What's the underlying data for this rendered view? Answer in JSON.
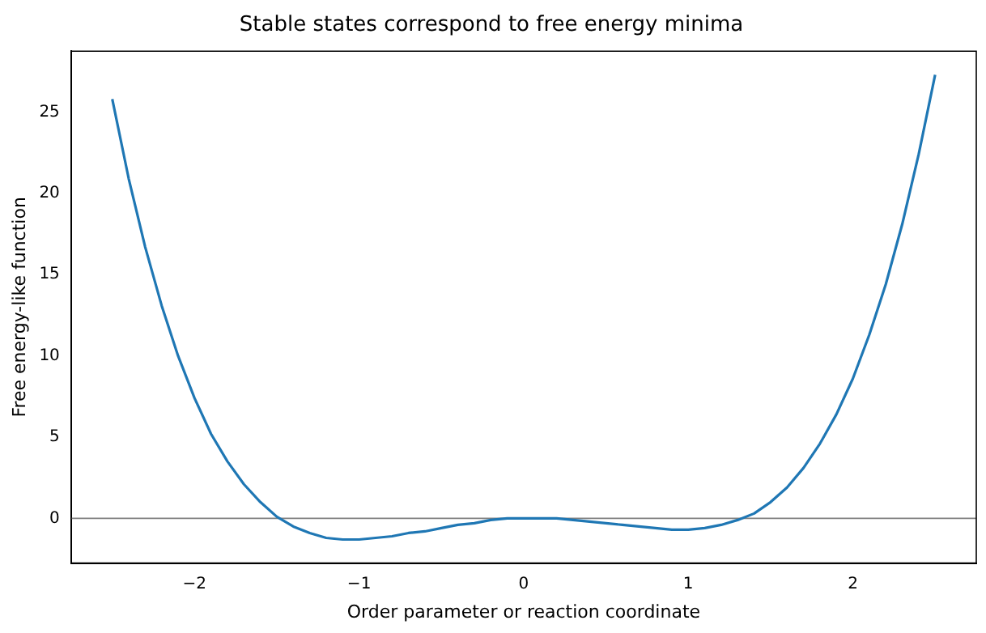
{
  "chart_data": {
    "type": "line",
    "title": "Stable states correspond to free energy minima",
    "xlabel": "Order parameter or reaction coordinate",
    "ylabel": "Free energy-like function",
    "x": [
      -2.5,
      -2.4,
      -2.3,
      -2.2,
      -2.1,
      -2.0,
      -1.9,
      -1.8,
      -1.7,
      -1.6,
      -1.5,
      -1.4,
      -1.3,
      -1.2,
      -1.1,
      -1.0,
      -0.9,
      -0.8,
      -0.7,
      -0.6,
      -0.5,
      -0.4,
      -0.3,
      -0.2,
      -0.1,
      0,
      0.1,
      0.2,
      0.3,
      0.4,
      0.5,
      0.6,
      0.7,
      0.8,
      0.9,
      1.0,
      1.1,
      1.2,
      1.3,
      1.4,
      1.5,
      1.6,
      1.7,
      1.8,
      1.9,
      2.0,
      2.1,
      2.2,
      2.3,
      2.4,
      2.5
    ],
    "series": [
      {
        "color": "#1f77b4",
        "values": [
          25.8,
          20.9,
          16.7,
          13.1,
          10.0,
          7.4,
          5.2,
          3.5,
          2.1,
          1.0,
          0.1,
          -0.5,
          -0.9,
          -1.2,
          -1.3,
          -1.3,
          -1.2,
          -1.1,
          -0.9,
          -0.8,
          -0.6,
          -0.4,
          -0.3,
          -0.1,
          0,
          0,
          0,
          0,
          -0.1,
          -0.2,
          -0.3,
          -0.4,
          -0.5,
          -0.6,
          -0.7,
          -0.7,
          -0.6,
          -0.4,
          -0.1,
          0.3,
          1.0,
          1.9,
          3.1,
          4.6,
          6.4,
          8.6,
          11.3,
          14.4,
          18.1,
          22.4,
          27.3
        ]
      }
    ],
    "xlim": [
      -2.75,
      2.75
    ],
    "ylim": [
      -2.75,
      28.75
    ],
    "xticks": [
      {
        "value": -2,
        "label": "−2"
      },
      {
        "value": -1,
        "label": "−1"
      },
      0,
      1,
      2
    ],
    "yticks": [
      0,
      5,
      10,
      15,
      20,
      25
    ],
    "ref_lines": [
      {
        "axis": "y",
        "value": 0,
        "color": "#808080"
      }
    ],
    "grid": false,
    "legend": false,
    "marker": "none",
    "line_style": "solid"
  }
}
